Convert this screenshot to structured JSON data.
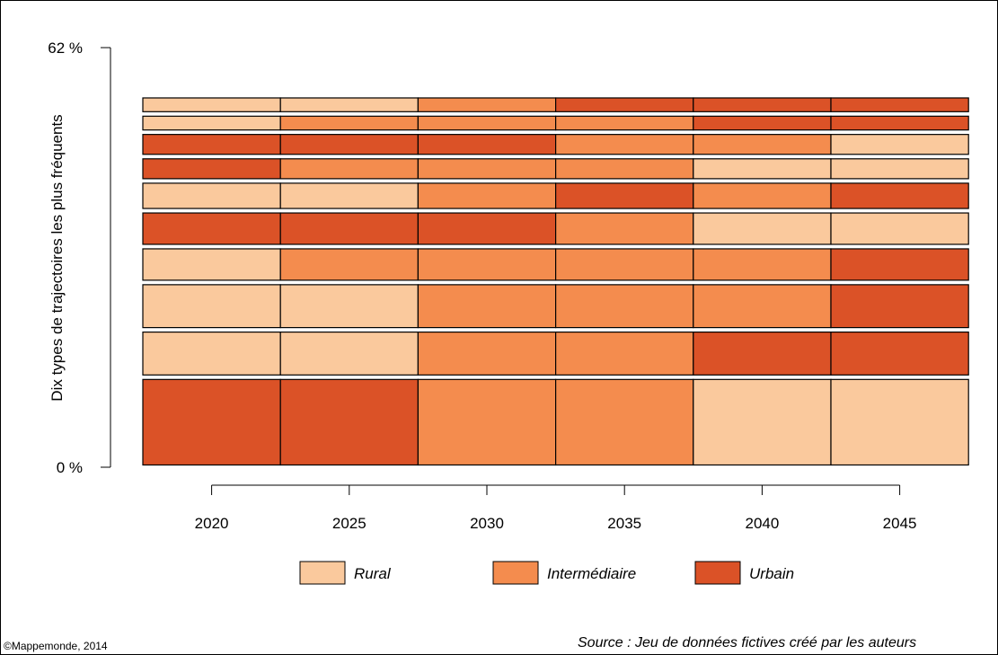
{
  "chart_data": {
    "type": "sequence-index-plot",
    "ylabel": "Dix types de trajectoires les plus fréquents",
    "ytick_labels": [
      "0 %",
      "62 %"
    ],
    "ylim": [
      0,
      62
    ],
    "categories": [
      "2020",
      "2025",
      "2030",
      "2035",
      "2040",
      "2045"
    ],
    "legend": [
      {
        "key": "rural",
        "label": "Rural",
        "color": "#FAC99D"
      },
      {
        "key": "intermediaire",
        "label": "Intermédiaire",
        "color": "#F48C4E"
      },
      {
        "key": "urbain",
        "label": "Urbain",
        "color": "#DB5227"
      }
    ],
    "legend_position": "bottom",
    "trajectories": [
      {
        "share": 13.3,
        "states": [
          "urbain",
          "urbain",
          "intermediaire",
          "intermediaire",
          "rural",
          "rural"
        ]
      },
      {
        "share": 7.0,
        "states": [
          "rural",
          "rural",
          "intermediaire",
          "intermediaire",
          "urbain",
          "urbain"
        ]
      },
      {
        "share": 7.0,
        "states": [
          "rural",
          "rural",
          "intermediaire",
          "intermediaire",
          "intermediaire",
          "urbain"
        ]
      },
      {
        "share": 5.3,
        "states": [
          "rural",
          "intermediaire",
          "intermediaire",
          "intermediaire",
          "intermediaire",
          "urbain"
        ]
      },
      {
        "share": 5.3,
        "states": [
          "urbain",
          "urbain",
          "urbain",
          "intermediaire",
          "rural",
          "rural"
        ]
      },
      {
        "share": 4.4,
        "states": [
          "rural",
          "rural",
          "intermediaire",
          "urbain",
          "intermediaire",
          "urbain"
        ]
      },
      {
        "share": 3.6,
        "states": [
          "urbain",
          "intermediaire",
          "intermediaire",
          "intermediaire",
          "rural",
          "rural"
        ]
      },
      {
        "share": 3.6,
        "states": [
          "urbain",
          "urbain",
          "urbain",
          "intermediaire",
          "intermediaire",
          "rural"
        ]
      },
      {
        "share": 2.7,
        "states": [
          "rural",
          "intermediaire",
          "intermediaire",
          "intermediaire",
          "urbain",
          "urbain"
        ]
      },
      {
        "share": 2.7,
        "states": [
          "rural",
          "rural",
          "intermediaire",
          "urbain",
          "urbain",
          "urbain"
        ]
      }
    ]
  },
  "footer": {
    "copyright": "©Mappemonde, 2014",
    "source": "Source : Jeu de données fictives créé par les auteurs"
  }
}
